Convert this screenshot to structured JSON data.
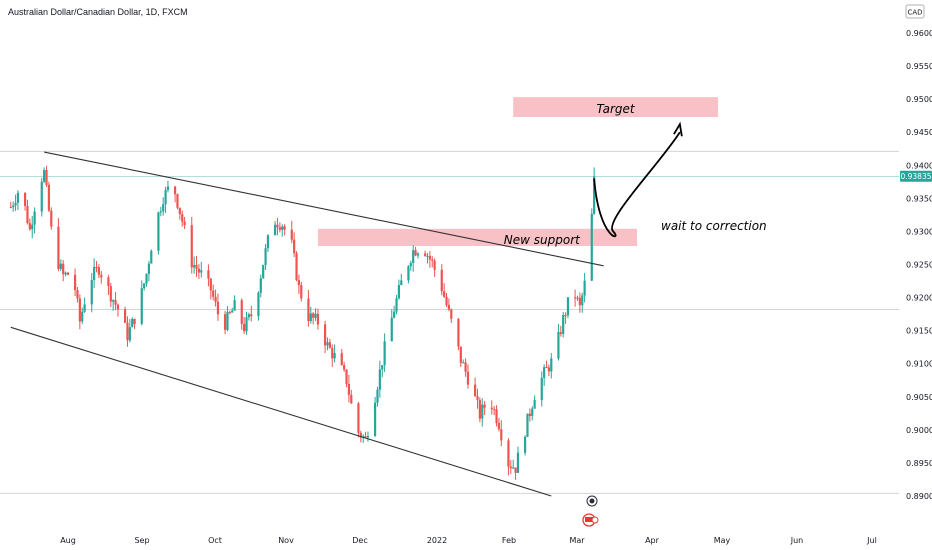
{
  "chart_data": {
    "type": "candlestick",
    "title": "Australian Dollar/Canadian Dollar, 1D, FXCM",
    "currency": "CAD",
    "ylim": [
      0.8865,
      0.9675
    ],
    "y_ticks": [
      "0.96000",
      "0.95500",
      "0.95000",
      "0.94500",
      "0.94000",
      "0.93500",
      "0.93000",
      "0.92500",
      "0.92000",
      "0.91500",
      "0.91000",
      "0.90500",
      "0.90000",
      "0.89500",
      "0.89000"
    ],
    "x_ticks": [
      "Aug",
      "Sep",
      "Oct",
      "Nov",
      "Dec",
      "2022",
      "Feb",
      "Mar",
      "Apr",
      "May",
      "Jun",
      "Jul"
    ],
    "last_price": "0.93835",
    "colors": {
      "up": "#26a69a",
      "down": "#ef5350",
      "zone": "#f7b6bb",
      "line": "#333333",
      "hline": "#b2dfdb"
    },
    "horizontal_lines": [
      0.9421,
      0.9383,
      0.9182,
      0.8904
    ],
    "trendlines": [
      {
        "from": [
          "2021-07-20",
          0.942
        ],
        "to": [
          "2022-03-12",
          0.9248
        ]
      },
      {
        "from": [
          "2021-07-06",
          0.9155
        ],
        "to": [
          "2022-02-18",
          0.89
        ]
      }
    ],
    "zones": [
      {
        "label": "Target",
        "x_from": "2022-02-02",
        "x_to": "2022-04-29",
        "y_low": 0.9473,
        "y_high": 0.9503
      },
      {
        "label": "New support",
        "x_from": "2021-11-12",
        "x_to": "2022-03-26",
        "y_low": 0.9278,
        "y_high": 0.9304
      }
    ],
    "annotation": "wait to correction",
    "arrow_path_days": [
      [
        "2022-03-08",
        0.938
      ],
      [
        "2022-03-16",
        0.93
      ],
      [
        "2022-04-04",
        0.94
      ],
      [
        "2022-04-13",
        0.945
      ]
    ],
    "series": [
      {
        "segment": "Jul",
        "points": [
          [
            "2021-07-06",
            0.9337
          ],
          [
            "2021-07-10",
            0.9368
          ],
          [
            "2021-07-14",
            0.9302
          ],
          [
            "2021-07-18",
            0.9375
          ],
          [
            "2021-07-20",
            0.9389
          ],
          [
            "2021-07-24",
            0.9272
          ],
          [
            "2021-07-28",
            0.9233
          ]
        ]
      },
      {
        "segment": "Aug",
        "points": [
          [
            "2021-08-01",
            0.9238
          ],
          [
            "2021-08-04",
            0.9164
          ],
          [
            "2021-08-08",
            0.9227
          ],
          [
            "2021-08-12",
            0.9245
          ],
          [
            "2021-08-16",
            0.9212
          ],
          [
            "2021-08-20",
            0.9183
          ],
          [
            "2021-08-24",
            0.9143
          ],
          [
            "2021-08-28",
            0.9178
          ]
        ]
      },
      {
        "segment": "Sep",
        "points": [
          [
            "2021-09-01",
            0.9236
          ],
          [
            "2021-09-04",
            0.93
          ],
          [
            "2021-09-08",
            0.9352
          ],
          [
            "2021-09-12",
            0.9374
          ],
          [
            "2021-09-16",
            0.9316
          ],
          [
            "2021-09-20",
            0.9254
          ],
          [
            "2021-09-24",
            0.9235
          ],
          [
            "2021-09-28",
            0.9212
          ]
        ]
      },
      {
        "segment": "Oct",
        "points": [
          [
            "2021-10-01",
            0.9176
          ],
          [
            "2021-10-04",
            0.9161
          ],
          [
            "2021-10-08",
            0.9186
          ],
          [
            "2021-10-12",
            0.9155
          ],
          [
            "2021-10-16",
            0.918
          ],
          [
            "2021-10-20",
            0.9253
          ],
          [
            "2021-10-24",
            0.9318
          ],
          [
            "2021-10-28",
            0.9311
          ]
        ]
      },
      {
        "segment": "Nov",
        "points": [
          [
            "2021-11-01",
            0.9279
          ],
          [
            "2021-11-04",
            0.9214
          ],
          [
            "2021-11-08",
            0.9172
          ],
          [
            "2021-11-12",
            0.9163
          ],
          [
            "2021-11-16",
            0.9127
          ],
          [
            "2021-11-20",
            0.9105
          ],
          [
            "2021-11-24",
            0.9075
          ],
          [
            "2021-11-28",
            0.9
          ]
        ]
      },
      {
        "segment": "Dec",
        "points": [
          [
            "2021-12-02",
            0.8985
          ],
          [
            "2021-12-06",
            0.9052
          ],
          [
            "2021-12-10",
            0.9123
          ],
          [
            "2021-12-14",
            0.9183
          ],
          [
            "2021-12-18",
            0.9235
          ],
          [
            "2021-12-22",
            0.9271
          ],
          [
            "2021-12-26",
            0.9278
          ],
          [
            "2021-12-30",
            0.9252
          ]
        ]
      },
      {
        "segment": "Jan",
        "points": [
          [
            "2022-01-03",
            0.9215
          ],
          [
            "2022-01-07",
            0.9163
          ],
          [
            "2022-01-11",
            0.9106
          ],
          [
            "2022-01-15",
            0.907
          ],
          [
            "2022-01-19",
            0.9023
          ],
          [
            "2022-01-23",
            0.9048
          ],
          [
            "2022-01-27",
            0.901
          ],
          [
            "2022-01-31",
            0.895
          ]
        ]
      },
      {
        "segment": "Feb",
        "points": [
          [
            "2022-02-03",
            0.8943
          ],
          [
            "2022-02-07",
            0.9
          ],
          [
            "2022-02-11",
            0.9054
          ],
          [
            "2022-02-15",
            0.9085
          ],
          [
            "2022-02-19",
            0.9108
          ],
          [
            "2022-02-23",
            0.9167
          ],
          [
            "2022-02-27",
            0.9214
          ],
          [
            "2022-03-02",
            0.9184
          ]
        ]
      },
      {
        "segment": "Mar",
        "points": [
          [
            "2022-03-04",
            0.922
          ],
          [
            "2022-03-06",
            0.9262
          ],
          [
            "2022-03-08",
            0.9383
          ]
        ]
      }
    ]
  }
}
